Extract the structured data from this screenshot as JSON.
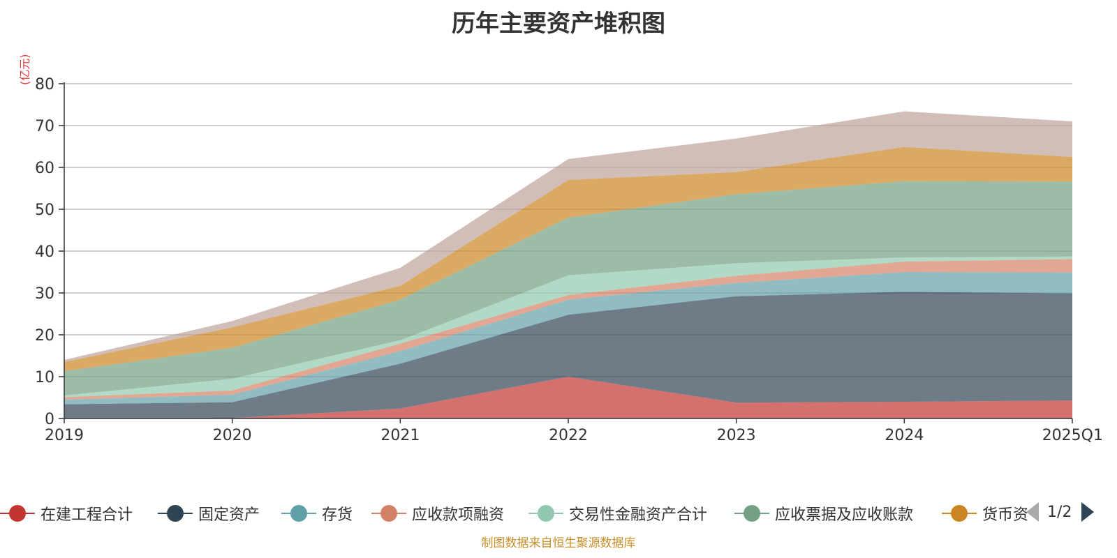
{
  "chart_data": {
    "type": "area",
    "stacked": true,
    "title": "历年主要资产堆积图",
    "unit_label": "(亿元)",
    "categories": [
      "2019",
      "2020",
      "2021",
      "2022",
      "2023",
      "2024",
      "2025Q1"
    ],
    "ylim": [
      0,
      80
    ],
    "yticks": [
      0,
      10,
      20,
      30,
      40,
      50,
      60,
      70,
      80
    ],
    "grid": true,
    "legend_position": "bottom",
    "series": [
      {
        "name": "在建工程合计",
        "color": "#c23531",
        "values": [
          0.0,
          0.1,
          2.4,
          10.0,
          3.8,
          4.0,
          4.3
        ]
      },
      {
        "name": "固定资产",
        "color": "#2f4554",
        "values": [
          3.4,
          3.8,
          10.7,
          14.8,
          25.4,
          26.3,
          25.6
        ]
      },
      {
        "name": "存货",
        "color": "#61a0a8",
        "values": [
          1.1,
          1.8,
          3.0,
          3.6,
          3.2,
          4.7,
          5.0
        ]
      },
      {
        "name": "应收款项融资",
        "color": "#d48265",
        "values": [
          0.6,
          1.0,
          1.8,
          1.1,
          1.7,
          2.5,
          3.2
        ]
      },
      {
        "name": "交易性金融资产合计",
        "color": "#91c7ae",
        "values": [
          0.4,
          2.8,
          0.8,
          4.7,
          3.0,
          1.0,
          0.6
        ]
      },
      {
        "name": "应收票据及应收账款",
        "color": "#749f83",
        "values": [
          5.8,
          7.4,
          9.7,
          13.8,
          16.5,
          18.2,
          17.9
        ]
      },
      {
        "name": "货币资",
        "color": "#ca8622",
        "values": [
          2.2,
          4.9,
          3.3,
          9.0,
          5.3,
          8.2,
          5.9
        ]
      },
      {
        "name": "",
        "color": "#bda29a",
        "values": [
          0.5,
          1.5,
          4.3,
          5.0,
          8.0,
          8.5,
          8.5
        ]
      }
    ]
  },
  "legend": {
    "pager_text": "1/2"
  },
  "footer": {
    "source": "制图数据来自恒生聚源数据库"
  }
}
